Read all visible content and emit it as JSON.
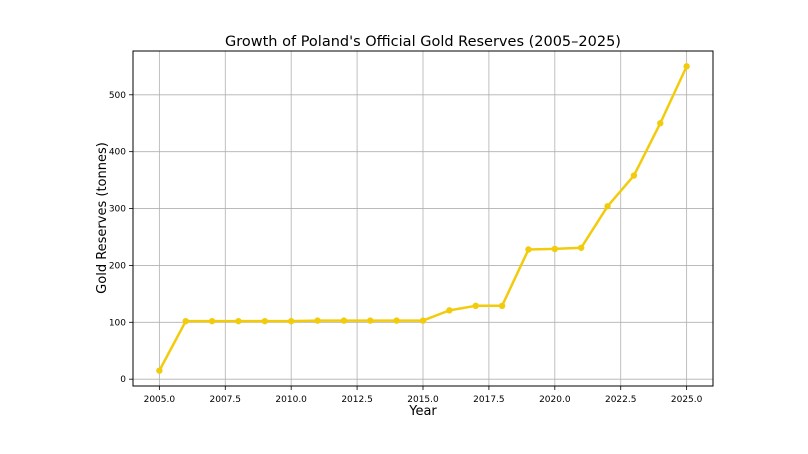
{
  "chart_data": {
    "type": "line",
    "title": "Growth of Poland's Official Gold Reserves (2005–2025)",
    "xlabel": "Year",
    "ylabel": "Gold Reserves (tonnes)",
    "x": [
      2005,
      2006,
      2007,
      2008,
      2009,
      2010,
      2011,
      2012,
      2013,
      2014,
      2015,
      2016,
      2017,
      2018,
      2019,
      2020,
      2021,
      2022,
      2023,
      2024,
      2025
    ],
    "series": [
      {
        "values": [
          15,
          102,
          102,
          102,
          102,
          102,
          103,
          103,
          103,
          103,
          103,
          121,
          129,
          129,
          228,
          229,
          231,
          304,
          358,
          450,
          550
        ],
        "color": "#f2cc0c",
        "marker": "circle"
      }
    ],
    "xticks": [
      "2005.0",
      "2007.5",
      "2010.0",
      "2012.5",
      "2015.0",
      "2017.5",
      "2020.0",
      "2022.5",
      "2025.0"
    ],
    "yticks": [
      "0",
      "100",
      "200",
      "300",
      "400",
      "500"
    ],
    "xlim": [
      2004.0,
      2026.0
    ],
    "ylim": [
      -12,
      577
    ],
    "grid": true
  }
}
